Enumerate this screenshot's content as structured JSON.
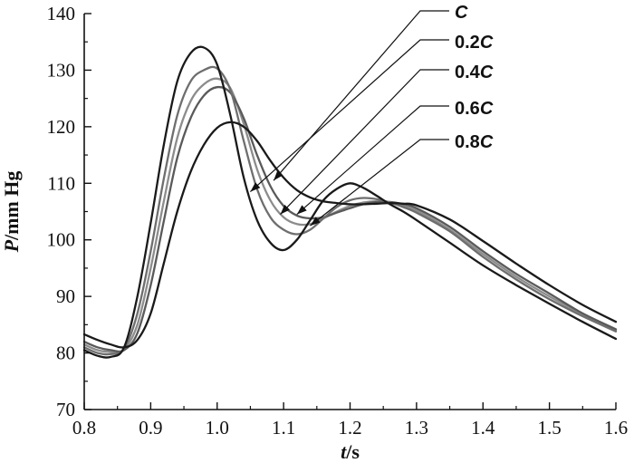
{
  "chart_data": {
    "type": "line",
    "xlabel": {
      "var": "t",
      "unit": "/s"
    },
    "ylabel": {
      "var": "P",
      "unit": "/mm Hg"
    },
    "xlim": [
      0.8,
      1.6
    ],
    "ylim": [
      70,
      140
    ],
    "xticks": [
      "0.8",
      "0.9",
      "1.0",
      "1.1",
      "1.2",
      "1.3",
      "1.4",
      "1.5",
      "1.6"
    ],
    "yticks": [
      "70",
      "80",
      "90",
      "100",
      "110",
      "120",
      "130",
      "140"
    ],
    "grid": false,
    "series": [
      {
        "name": "C",
        "label": {
          "prefix": "",
          "var": "C"
        },
        "color": "#1a1a1a",
        "x": [
          0.8,
          0.82,
          0.84,
          0.86,
          0.88,
          0.9,
          0.92,
          0.94,
          0.96,
          0.98,
          1.0,
          1.02,
          1.04,
          1.06,
          1.08,
          1.1,
          1.12,
          1.14,
          1.16,
          1.18,
          1.2,
          1.22,
          1.24,
          1.26,
          1.28,
          1.3,
          1.35,
          1.4,
          1.45,
          1.5,
          1.55,
          1.6
        ],
        "y": [
          80.5,
          79.5,
          79.3,
          81.0,
          90.0,
          103.0,
          117.0,
          128.0,
          133.0,
          134.0,
          131.0,
          122.0,
          111.0,
          103.5,
          99.5,
          98.2,
          100.0,
          103.5,
          107.0,
          109.0,
          110.0,
          109.2,
          107.8,
          106.3,
          105.0,
          103.5,
          99.5,
          95.5,
          92.0,
          88.7,
          85.5,
          82.5
        ]
      },
      {
        "name": "0.2C",
        "label": {
          "prefix": "0.2",
          "var": "C"
        },
        "color": "#6e6e6e",
        "x": [
          0.8,
          0.82,
          0.84,
          0.86,
          0.88,
          0.9,
          0.92,
          0.94,
          0.96,
          0.98,
          1.0,
          1.02,
          1.04,
          1.06,
          1.08,
          1.1,
          1.12,
          1.14,
          1.16,
          1.18,
          1.2,
          1.22,
          1.24,
          1.26,
          1.28,
          1.3,
          1.35,
          1.4,
          1.45,
          1.5,
          1.55,
          1.6
        ],
        "y": [
          81.0,
          80.0,
          79.8,
          80.8,
          87.0,
          98.0,
          111.0,
          122.0,
          128.0,
          130.0,
          130.3,
          126.5,
          117.5,
          109.0,
          104.0,
          101.8,
          101.0,
          101.8,
          103.8,
          105.8,
          107.0,
          107.4,
          107.2,
          106.6,
          105.8,
          104.8,
          101.5,
          97.0,
          93.0,
          89.5,
          86.5,
          83.8
        ]
      },
      {
        "name": "0.4C",
        "label": {
          "prefix": "0.4",
          "var": "C"
        },
        "color": "#8c8c8c",
        "x": [
          0.8,
          0.82,
          0.84,
          0.86,
          0.88,
          0.9,
          0.92,
          0.94,
          0.96,
          0.98,
          1.0,
          1.02,
          1.04,
          1.06,
          1.08,
          1.1,
          1.12,
          1.14,
          1.16,
          1.18,
          1.2,
          1.22,
          1.24,
          1.26,
          1.28,
          1.3,
          1.35,
          1.4,
          1.45,
          1.5,
          1.55,
          1.6
        ],
        "y": [
          81.5,
          80.5,
          80.2,
          80.6,
          85.0,
          95.0,
          107.0,
          118.0,
          124.5,
          127.5,
          128.5,
          126.8,
          120.5,
          112.5,
          107.0,
          104.0,
          102.8,
          102.8,
          103.8,
          105.0,
          106.0,
          106.6,
          106.8,
          106.5,
          106.0,
          105.2,
          101.8,
          97.5,
          93.5,
          90.0,
          86.8,
          84.0
        ]
      },
      {
        "name": "0.6C",
        "label": {
          "prefix": "0.6",
          "var": "C"
        },
        "color": "#5a5a5a",
        "x": [
          0.8,
          0.82,
          0.84,
          0.86,
          0.88,
          0.9,
          0.92,
          0.94,
          0.96,
          0.98,
          1.0,
          1.02,
          1.04,
          1.06,
          1.08,
          1.1,
          1.12,
          1.14,
          1.16,
          1.18,
          1.2,
          1.22,
          1.24,
          1.26,
          1.28,
          1.3,
          1.35,
          1.4,
          1.45,
          1.5,
          1.55,
          1.6
        ],
        "y": [
          82.0,
          81.0,
          80.5,
          80.5,
          83.5,
          92.0,
          103.5,
          114.5,
          121.5,
          125.5,
          127.0,
          126.0,
          121.5,
          115.0,
          109.5,
          106.0,
          104.3,
          103.8,
          104.0,
          104.8,
          105.6,
          106.3,
          106.7,
          106.7,
          106.3,
          105.6,
          102.3,
          98.0,
          94.0,
          90.5,
          87.0,
          84.2
        ]
      },
      {
        "name": "0.8C",
        "label": {
          "prefix": "0.8",
          "var": "C"
        },
        "color": "#1a1a1a",
        "x": [
          0.8,
          0.82,
          0.84,
          0.86,
          0.88,
          0.9,
          0.92,
          0.94,
          0.96,
          0.98,
          1.0,
          1.02,
          1.04,
          1.06,
          1.08,
          1.1,
          1.12,
          1.14,
          1.16,
          1.18,
          1.2,
          1.22,
          1.24,
          1.26,
          1.28,
          1.3,
          1.35,
          1.4,
          1.45,
          1.5,
          1.55,
          1.6
        ],
        "y": [
          83.3,
          82.3,
          81.5,
          81.0,
          82.3,
          87.0,
          96.0,
          105.0,
          112.0,
          116.8,
          119.8,
          120.8,
          120.0,
          117.5,
          114.0,
          111.0,
          108.8,
          107.5,
          106.8,
          106.5,
          106.3,
          106.3,
          106.4,
          106.5,
          106.4,
          106.1,
          103.6,
          99.8,
          95.8,
          92.0,
          88.5,
          85.5
        ]
      }
    ]
  }
}
